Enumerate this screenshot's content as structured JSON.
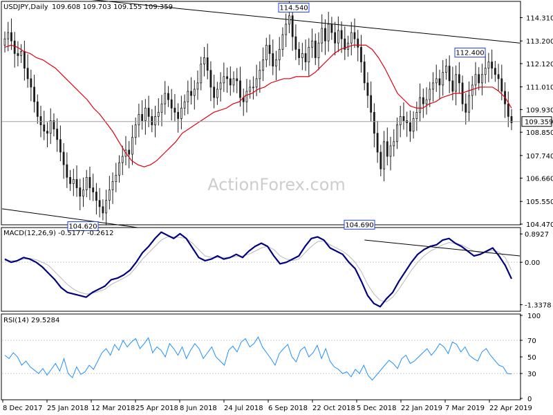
{
  "header": {
    "symbol": "USDJPY,Daily",
    "ohlc": "109.608 109.703 109.155 109.359"
  },
  "watermark": "ActionForex.com",
  "colors": {
    "candles": "#1a1a1a",
    "ma": "#e0000f",
    "macd_line": "#000080",
    "signal_line": "#b8b8b8",
    "rsi_line": "#1e90ff",
    "trendline": "#000000",
    "grid": "#c8c8c8"
  },
  "chart_data": [
    {
      "type": "candlestick",
      "title": "USDJPY,Daily",
      "ylim": [
        104.47,
        115.02
      ],
      "y_ticks": [
        "114.310",
        "113.200",
        "112.120",
        "111.010",
        "109.930",
        "108.850",
        "107.740",
        "106.660",
        "105.550",
        "104.470"
      ],
      "current_price": "109.359",
      "annotations": [
        {
          "label": "114.540",
          "value": 114.54
        },
        {
          "label": "104.620",
          "value": 104.62
        },
        {
          "label": "104.690",
          "value": 104.69
        },
        {
          "label": "112.400",
          "value": 112.4
        }
      ],
      "x_labels": [
        "8 Dec 2017",
        "25 Jan 2018",
        "12 Mar 2018",
        "25 Apr 2018",
        "8 Jun 2018",
        "24 Jul 2018",
        "6 Sep 2018",
        "22 Oct 2018",
        "5 Dec 2018",
        "22 Jan 2019",
        "7 Mar 2019",
        "22 Apr 2019"
      ],
      "close": [
        113.3,
        113.6,
        113.2,
        112.6,
        112.5,
        112.7,
        111.9,
        111.4,
        111.0,
        110.3,
        109.6,
        109.2,
        108.9,
        108.8,
        109.4,
        109.0,
        108.5,
        107.9,
        107.3,
        106.7,
        106.4,
        106.6,
        106.2,
        105.8,
        106.1,
        106.7,
        106.2,
        106.0,
        105.6,
        105.3,
        105.0,
        105.6,
        106.1,
        106.5,
        106.8,
        107.4,
        107.7,
        108.0,
        107.8,
        108.6,
        109.2,
        109.7,
        109.4,
        110.0,
        109.6,
        109.2,
        109.6,
        109.8,
        110.2,
        110.7,
        110.4,
        110.0,
        109.8,
        109.5,
        110.0,
        110.3,
        110.8,
        110.6,
        110.9,
        111.2,
        112.1,
        112.4,
        111.8,
        111.0,
        110.5,
        110.9,
        111.2,
        111.5,
        111.4,
        111.1,
        111.4,
        111.3,
        110.5,
        110.3,
        110.8,
        111.0,
        111.0,
        111.4,
        111.8,
        112.3,
        113.0,
        112.6,
        112.0,
        112.3,
        112.8,
        113.5,
        114.0,
        114.4,
        113.4,
        112.8,
        112.4,
        112.6,
        112.2,
        112.9,
        113.2,
        112.4,
        113.1,
        113.8,
        113.2,
        114.0,
        113.6,
        113.1,
        113.7,
        113.3,
        112.8,
        113.1,
        113.6,
        113.3,
        112.9,
        112.2,
        111.2,
        110.6,
        109.8,
        108.8,
        107.9,
        107.1,
        108.4,
        107.7,
        108.2,
        108.4,
        109.2,
        109.6,
        109.4,
        109.3,
        108.9,
        109.5,
        109.8,
        110.5,
        110.2,
        110.4,
        110.9,
        111.2,
        111.4,
        111.1,
        111.7,
        112.0,
        111.3,
        110.8,
        111.6,
        111.2,
        110.2,
        109.8,
        110.6,
        111.1,
        111.6,
        111.2,
        111.6,
        111.9,
        112.2,
        111.9,
        111.6,
        111.4,
        110.8,
        110.2,
        109.6,
        109.3
      ],
      "ma": [
        112.9,
        113.0,
        112.9,
        112.7,
        112.6,
        112.4,
        112.3,
        112.1,
        111.9,
        111.6,
        111.3,
        111.0,
        110.7,
        110.4,
        110.0,
        109.7,
        109.3,
        108.9,
        108.4,
        107.9,
        107.5,
        107.3,
        107.2,
        107.3,
        107.5,
        107.8,
        108.1,
        108.4,
        108.8,
        109.0,
        109.2,
        109.4,
        109.6,
        109.8,
        109.9,
        110.0,
        110.2,
        110.3,
        110.6,
        110.7,
        110.9,
        111.0,
        111.2,
        111.3,
        111.4,
        111.4,
        111.5,
        111.5,
        111.5,
        111.7,
        112.0,
        112.3,
        112.6,
        112.8,
        112.9,
        113.0,
        113.0,
        113.0,
        112.8,
        112.4,
        111.9,
        111.3,
        110.7,
        110.4,
        110.1,
        110.0,
        110.0,
        110.2,
        110.3,
        110.5,
        110.6,
        110.7,
        110.7,
        110.8,
        110.9,
        111.0,
        111.0,
        111.0,
        110.8,
        110.5,
        110.0
      ],
      "trendlines": [
        {
          "from": [
            0,
            115.6
          ],
          "to": [
            160,
            113.1
          ]
        },
        {
          "from": [
            0,
            105.2
          ],
          "to": [
            59,
            104.3
          ]
        }
      ]
    },
    {
      "type": "line",
      "title": "MACD(12,26,9) -0.5177 -0.2612",
      "ylim": [
        -1.5,
        1.05
      ],
      "y_ticks": [
        "0.8927",
        "0.00",
        "-1.3378"
      ],
      "macd": [
        0.1,
        0.0,
        0.05,
        0.15,
        0.1,
        0.0,
        -0.15,
        -0.35,
        -0.55,
        -0.8,
        -0.95,
        -1.0,
        -1.05,
        -1.1,
        -0.95,
        -0.85,
        -0.75,
        -0.55,
        -0.5,
        -0.4,
        -0.25,
        0.0,
        0.3,
        0.5,
        0.75,
        0.95,
        0.85,
        0.75,
        0.9,
        0.75,
        0.45,
        0.15,
        0.05,
        0.1,
        0.2,
        0.1,
        0.15,
        0.25,
        0.15,
        0.35,
        0.5,
        0.6,
        0.5,
        0.2,
        -0.05,
        0.0,
        0.1,
        0.2,
        0.5,
        0.75,
        0.8,
        0.7,
        0.45,
        0.35,
        0.25,
        0.0,
        -0.2,
        -0.6,
        -1.05,
        -1.3,
        -1.4,
        -1.15,
        -0.95,
        -0.6,
        -0.3,
        0.0,
        0.25,
        0.4,
        0.5,
        0.55,
        0.7,
        0.75,
        0.6,
        0.5,
        0.35,
        0.2,
        0.25,
        0.35,
        0.45,
        0.2,
        -0.1,
        -0.52
      ],
      "signal": [
        0.05,
        0.05,
        0.05,
        0.1,
        0.12,
        0.08,
        0.0,
        -0.1,
        -0.3,
        -0.5,
        -0.7,
        -0.85,
        -0.95,
        -1.0,
        -0.98,
        -0.92,
        -0.85,
        -0.7,
        -0.6,
        -0.5,
        -0.38,
        -0.15,
        0.1,
        0.3,
        0.5,
        0.7,
        0.8,
        0.8,
        0.78,
        0.75,
        0.6,
        0.4,
        0.2,
        0.15,
        0.15,
        0.15,
        0.15,
        0.18,
        0.2,
        0.25,
        0.35,
        0.45,
        0.5,
        0.4,
        0.2,
        0.1,
        0.05,
        0.1,
        0.3,
        0.5,
        0.65,
        0.68,
        0.55,
        0.45,
        0.35,
        0.2,
        0.0,
        -0.3,
        -0.7,
        -1.0,
        -1.2,
        -1.25,
        -1.1,
        -0.85,
        -0.55,
        -0.25,
        0.0,
        0.2,
        0.35,
        0.45,
        0.55,
        0.62,
        0.6,
        0.55,
        0.45,
        0.35,
        0.3,
        0.32,
        0.38,
        0.32,
        0.15,
        -0.26
      ],
      "trendline": {
        "from": [
          57.5,
          0.7
        ],
        "to": [
          69,
          0.2
        ]
      }
    },
    {
      "type": "line",
      "title": "RSI(14) 29.5284",
      "ylim": [
        0,
        100
      ],
      "y_ticks": [
        "100",
        "70",
        "50",
        "30",
        "0"
      ],
      "rsi": [
        52,
        48,
        55,
        50,
        40,
        45,
        38,
        34,
        30,
        36,
        28,
        35,
        42,
        33,
        48,
        30,
        25,
        38,
        29,
        32,
        40,
        35,
        45,
        55,
        60,
        52,
        65,
        58,
        70,
        62,
        68,
        72,
        60,
        66,
        73,
        55,
        62,
        58,
        50,
        66,
        60,
        52,
        62,
        48,
        58,
        66,
        60,
        48,
        55,
        62,
        50,
        45,
        40,
        58,
        63,
        56,
        68,
        72,
        62,
        66,
        74,
        62,
        55,
        48,
        40,
        54,
        60,
        65,
        50,
        44,
        58,
        62,
        50,
        55,
        64,
        48,
        60,
        45,
        38,
        35,
        30,
        32,
        26,
        35,
        30,
        40,
        28,
        22,
        28,
        34,
        40,
        46,
        42,
        36,
        48,
        52,
        42,
        45,
        50,
        55,
        60,
        52,
        58,
        66,
        62,
        54,
        68,
        65,
        56,
        62,
        52,
        48,
        45,
        56,
        60,
        52,
        46,
        40,
        38,
        30,
        29.5
      ]
    }
  ]
}
